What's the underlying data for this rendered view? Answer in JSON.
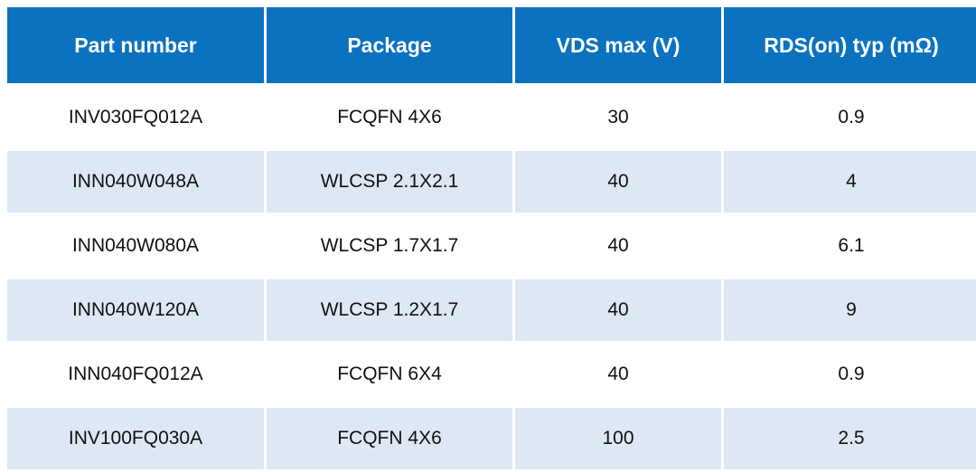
{
  "table": {
    "headers": [
      "Part number",
      "Package",
      "VDS max (V)",
      "RDS(on) typ (mΩ)"
    ],
    "rows": [
      [
        "INV030FQ012A",
        "FCQFN 4X6",
        "30",
        "0.9"
      ],
      [
        "INN040W048A",
        "WLCSP 2.1X2.1",
        "40",
        "4"
      ],
      [
        "INN040W080A",
        "WLCSP 1.7X1.7",
        "40",
        "6.1"
      ],
      [
        "INN040W120A",
        "WLCSP 1.2X1.7",
        "40",
        "9"
      ],
      [
        "INN040FQ012A",
        "FCQFN 6X4",
        "40",
        "0.9"
      ],
      [
        "INV100FQ030A",
        "FCQFN 4X6",
        "100",
        "2.5"
      ]
    ]
  },
  "colors": {
    "header_bg": "#0b72c0",
    "header_text": "#ffffff",
    "row_alt_bg": "#dde8f4",
    "row_bg": "#ffffff"
  }
}
